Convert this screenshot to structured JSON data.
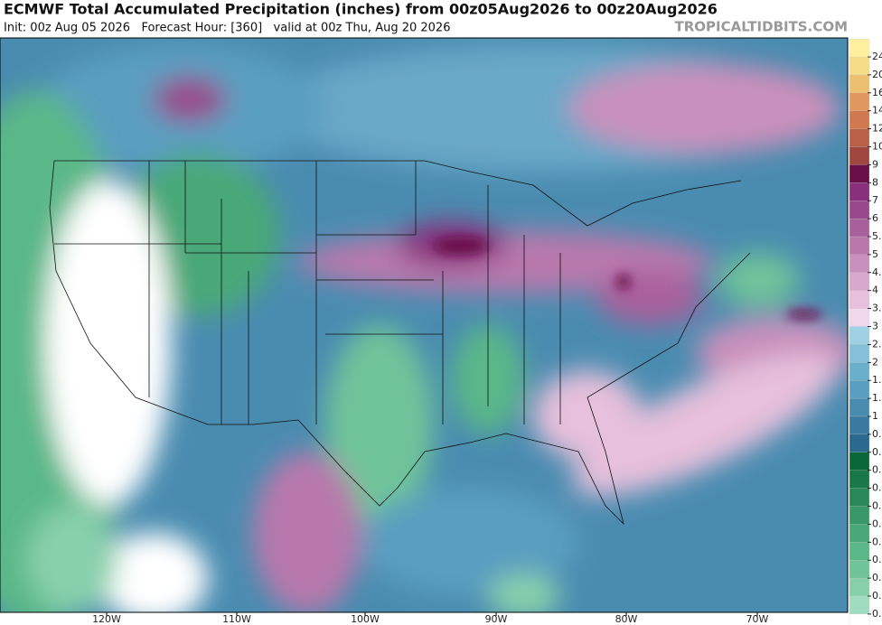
{
  "header": {
    "title": "ECMWF Total Accumulated Precipitation (inches) from 00z05Aug2026 to 00z20Aug2026",
    "subtitle": "Init: 00z Aug 05 2026   Forecast Hour: [360]   valid at 00z Thu, Aug 20 2026",
    "watermark": "TROPICALTIDBITS.COM"
  },
  "map": {
    "longitude_labels": [
      "120W",
      "110W",
      "100W",
      "90W",
      "80W",
      "70W"
    ]
  },
  "colorbar": {
    "labels": [
      "24",
      "20",
      "16",
      "14",
      "12",
      "10",
      "9",
      "8",
      "7",
      "6",
      "5.",
      "5",
      "4.",
      "4",
      "3.",
      "3",
      "2.",
      "2",
      "1.",
      "1.",
      "1",
      "0.",
      "0.",
      "0.",
      "0.",
      "0.",
      "0.",
      "0.",
      "0.",
      "0.",
      "0.",
      "0."
    ]
  }
}
